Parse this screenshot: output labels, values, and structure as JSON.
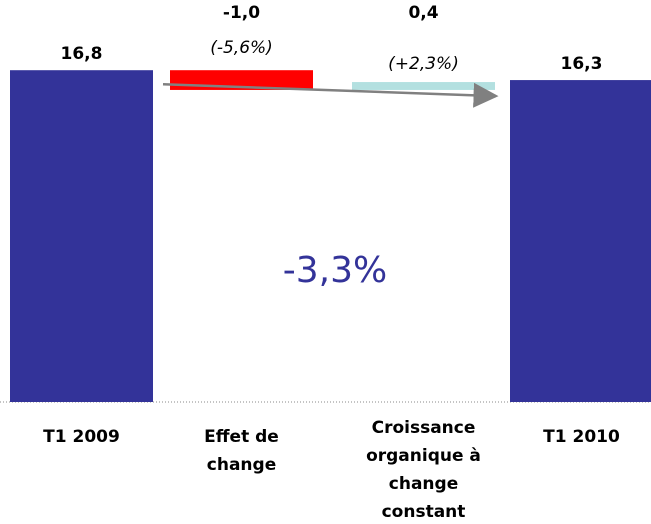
{
  "chart_data": {
    "type": "waterfall",
    "categories": [
      "T1 2009",
      "Effet de change",
      "Croissance organique à change constant",
      "T1 2010"
    ],
    "values": [
      16.8,
      -1.0,
      0.4,
      16.3
    ],
    "value_labels": [
      "16,8",
      "-1,0",
      "0,4",
      "16,3"
    ],
    "change_labels": [
      null,
      "(-5,6%)",
      "(+2,3%)",
      null
    ],
    "measures": [
      "total",
      "relative",
      "relative",
      "total"
    ],
    "colors": [
      "#333399",
      "#ff0000",
      "#b3e0e0",
      "#333399"
    ],
    "annotation": "-3,3%",
    "ylim": [
      0,
      20
    ]
  }
}
